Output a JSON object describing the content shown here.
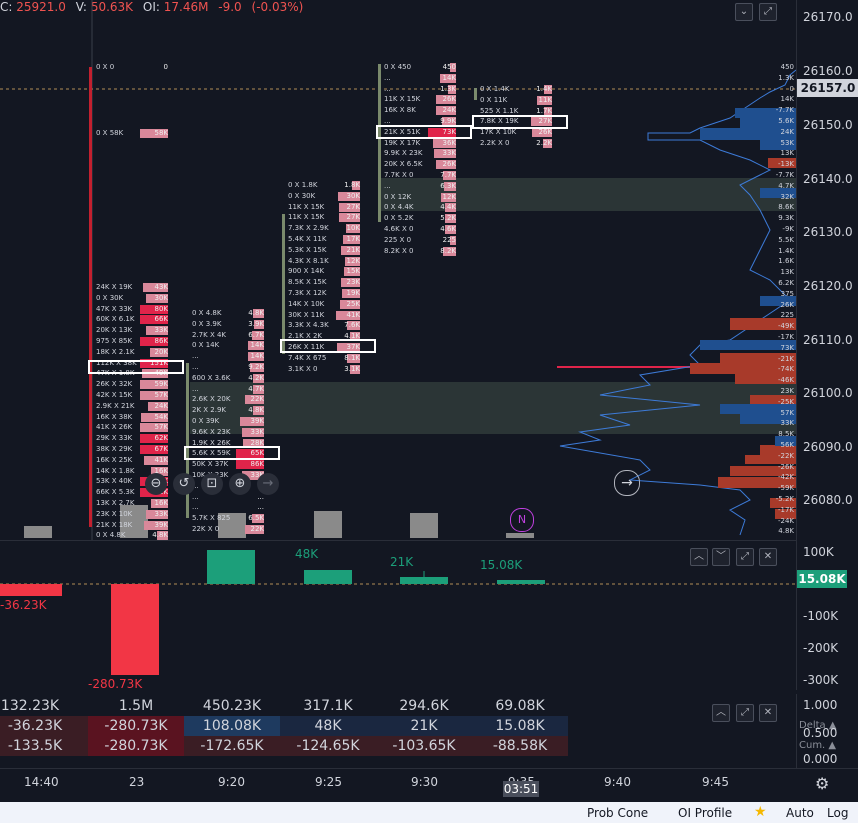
{
  "header": {
    "c_label": "C:",
    "c_value": "25921.0",
    "v_label": "V:",
    "v_value": "50.63K",
    "oi_label": "OI:",
    "oi_value": "17.46M",
    "change": "-9.0",
    "change_pct": "(-0.03%)"
  },
  "colors": {
    "bg": "#131722",
    "bid": "#d9889a",
    "ask": "#e0244a",
    "buy": "#1c9f7a",
    "sell": "#f23645",
    "profile_blue": "#1f4f8f",
    "profile_red": "#c0392b"
  },
  "price_axis": {
    "labels": [
      "26170.0",
      "26160.0",
      "26150.0",
      "26140.0",
      "26130.0",
      "26120.0",
      "26110.0",
      "26100.0",
      "26090.0",
      "26080.0"
    ],
    "current": "26157.0"
  },
  "profile_labels": [
    "450",
    "1.3K",
    "0",
    "14K",
    "-7.7K",
    "5.6K",
    "24K",
    "53K",
    "13K",
    "-13K",
    "-7.7K",
    "4.7K",
    "32K",
    "8.6K",
    "9.3K",
    "-9K",
    "5.5K",
    "1.4K",
    "1.6K",
    "13K",
    "6.2K",
    "375",
    "26K",
    "225",
    "-49K",
    "-17K",
    "73K",
    "-21K",
    "-74K",
    "-46K",
    "23K",
    "-25K",
    "57K",
    "33K",
    "8.5K",
    "56K",
    "-22K",
    "-26K",
    "-42K",
    "-59K",
    "-5.2K",
    "-17K",
    "-24K",
    "4.8K"
  ],
  "footprints": [
    {
      "name": "fp-1440",
      "top_rows": [
        "0 X 0|0",
        "0 X 58K|58K"
      ],
      "rows": [
        "24K X 19K|43K",
        "0 X 30K|30K",
        "47K X 33K|80K",
        "60K X 6.1K|66K",
        "20K X 13K|33K",
        "975 X 85K|86K",
        "18K X 2.1K|20K",
        "112K X 38K|151K",
        "47K X 1.8K|49K",
        "26K X 32K|59K",
        "42K X 15K|57K",
        "2.9K X 21K|24K",
        "16K X 38K|54K",
        "41K X 26K|57K",
        "29K X 33K|62K",
        "38K X 29K|67K",
        "16K X 25K|41K",
        "14K X 1.8K|16K",
        "53K X 40K|93K",
        "66K X 5.3K|72K",
        "13K X 2.7K|16K",
        "23K X 10K|33K",
        "21K X 18K|39K",
        "0 X 4.8K|4.8K"
      ]
    },
    {
      "name": "fp-23",
      "rows": [
        "0 X 4.8K|4.8K",
        "0 X 3.9K|3.9K",
        "2.7K X 4K|6.7K",
        "0 X 14K|14K",
        "...|14K",
        "...|9.2K",
        "600 X 3.6K|4.2K",
        "...|4.7K",
        "2.6K X 20K|22K",
        "2K X 2.9K|4.8K",
        "0 X 39K|39K",
        "9.6K X 23K|33K",
        "1.9K X 26K|28K",
        "5.6K X 59K|65K",
        "50K X 37K|86K",
        "10K X 23K|33K",
        "...|...",
        "...|...",
        "...|...",
        "5.7K X 825|6.5K",
        "22K X 0|22K"
      ]
    },
    {
      "name": "fp-920",
      "rows": [
        "0 X 1.8K|1.8K",
        "0 X 30K|30K",
        "11K X 15K|27K",
        "11K X 15K|27K",
        "7.3K X 2.9K|10K",
        "5.4K X 11K|17K",
        "5.3K X 15K|21K",
        "4.3K X 8.1K|12K",
        "900 X 14K|15K",
        "8.5K X 15K|23K",
        "7.3K X 12K|19K",
        "14K X 10K|25K",
        "30K X 11K|41K",
        "3.3K X 4.3K|7.6K",
        "2.1K X 2K|4.1K",
        "26K X 11K|37K",
        "7.4K X 675|8.1K",
        "3.1K X 0|3.1K"
      ]
    },
    {
      "name": "fp-925",
      "rows": [
        "0 X 450|450",
        "...|14K",
        "...|1.3K",
        "11K X 15K|26K",
        "16K X 8K|24K",
        "...|9.9K",
        "21K X 51K|73K",
        "19K X 17K|36K",
        "9.9K X 23K|33K",
        "20K X 6.5K|26K",
        "7.7K X 0|7.7K",
        "...|6.3K",
        "0 X 12K|12K",
        "0 X 4.4K|4.4K",
        "0 X 5.2K|5.2K",
        "4.6K X 0|4.6K",
        "225 X 0|225",
        "8.2K X 0|8.2K"
      ]
    },
    {
      "name": "fp-930",
      "rows": [
        "0 X 1.4K|1.4K",
        "0 X 11K|11K",
        "525 X 1.1K|1.7K",
        "7.8K X 19K|27K",
        "17K X 10K|26K",
        "2.2K X 0|2.2K"
      ]
    }
  ],
  "delta": {
    "labels": [
      "-36.23K",
      "-280.73K",
      "48K",
      "21K",
      "15.08K"
    ],
    "axis": [
      "100K",
      "0",
      "-100K",
      "-200K",
      "-300K"
    ],
    "current": "15.08K"
  },
  "right_small_axis": [
    "1.000",
    "0.500",
    "0.000",
    "Delta ▲",
    "Cum. ▲"
  ],
  "stats": {
    "volume": [
      "132.23K",
      "1.5M",
      "450.23K",
      "317.1K",
      "294.6K",
      "69.08K"
    ],
    "delta": [
      "-36.23K",
      "-280.73K",
      "108.08K",
      "48K",
      "21K",
      "15.08K"
    ],
    "cum_delta": [
      "-133.5K",
      "-280.73K",
      "-172.65K",
      "-124.65K",
      "-103.65K",
      "-88.58K"
    ]
  },
  "time_axis": {
    "labels": [
      "14:40",
      "23",
      "9:20",
      "9:25",
      "9:30",
      "9:35",
      "9:40",
      "9:45"
    ],
    "cursor": "03:51"
  },
  "bottom_bar": {
    "prob_cone": "Prob Cone",
    "oi_profile": "OI Profile",
    "star": "★",
    "auto": "Auto",
    "log": "Log"
  },
  "toolbar": {
    "zoom_out": "⊖",
    "reset": "↺",
    "fit": "⊡",
    "zoom_in": "⊕",
    "forward": "→",
    "go_live": "→",
    "news": "N"
  }
}
